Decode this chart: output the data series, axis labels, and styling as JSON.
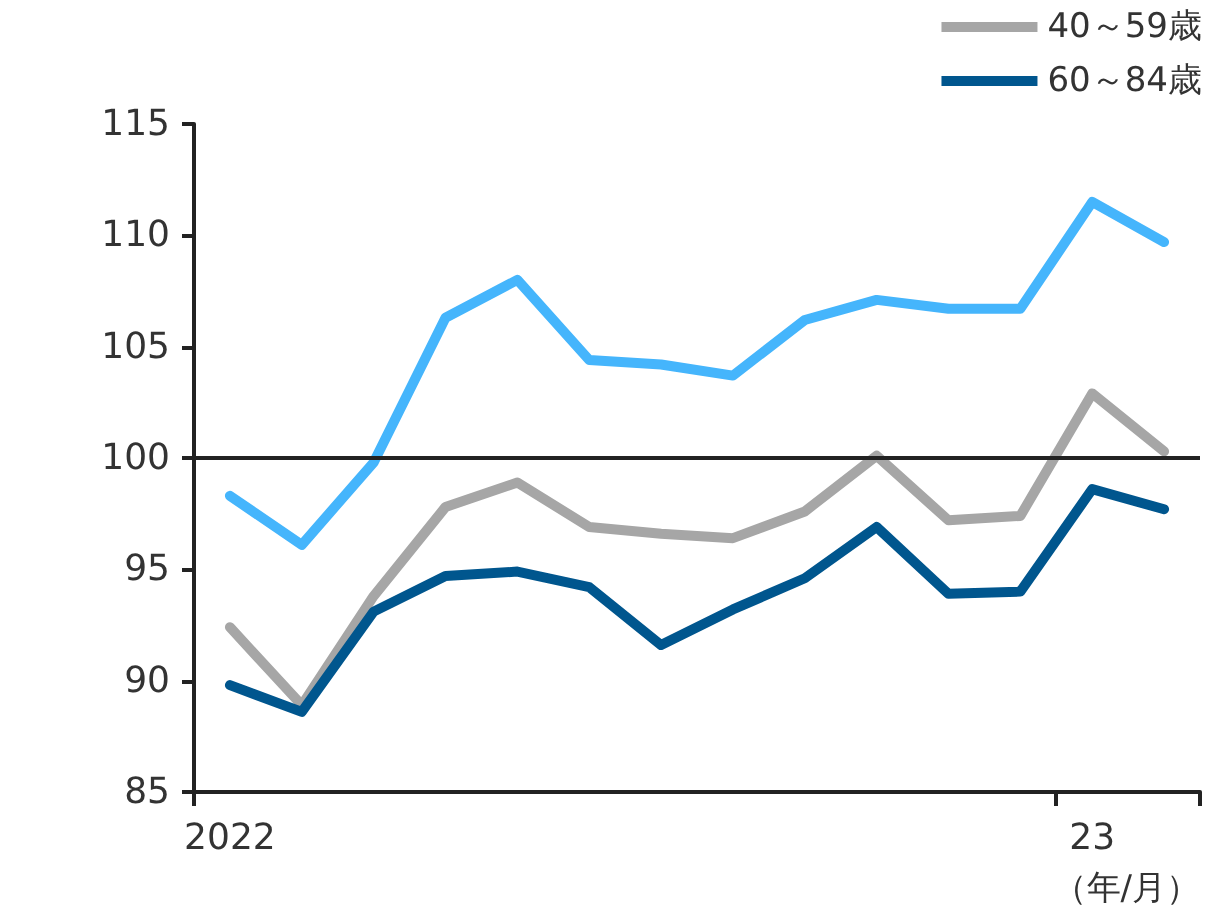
{
  "chart_data": {
    "type": "line",
    "categories": [
      "2022",
      null,
      null,
      null,
      null,
      null,
      null,
      null,
      null,
      null,
      null,
      null,
      "23",
      null
    ],
    "xlabel": "（年/月）",
    "series": [
      {
        "color": "#45b5fc",
        "values": [
          98.3,
          96.1,
          99.8,
          106.3,
          108.0,
          104.4,
          104.2,
          103.7,
          106.2,
          107.1,
          106.7,
          106.7,
          111.5,
          109.7
        ]
      },
      {
        "name": "40～59歳",
        "color": "#a6a6a6",
        "values": [
          92.4,
          88.9,
          93.8,
          97.8,
          98.9,
          96.9,
          96.6,
          96.4,
          97.6,
          100.1,
          97.2,
          97.4,
          102.9,
          100.3
        ]
      },
      {
        "name": "60～84歳",
        "color": "#00568e",
        "values": [
          89.8,
          88.6,
          93.1,
          94.7,
          94.9,
          94.2,
          91.6,
          93.2,
          94.6,
          96.9,
          93.9,
          94.0,
          98.6,
          97.7
        ]
      }
    ],
    "ylim": [
      85,
      115
    ],
    "yticks": [
      85,
      90,
      95,
      100,
      105,
      110,
      115
    ],
    "ref_lines": [
      {
        "axis": "y",
        "value": 100,
        "color": "#222222"
      }
    ],
    "grid": false,
    "legend": "top right",
    "marker": "none",
    "line_style": "solid"
  }
}
